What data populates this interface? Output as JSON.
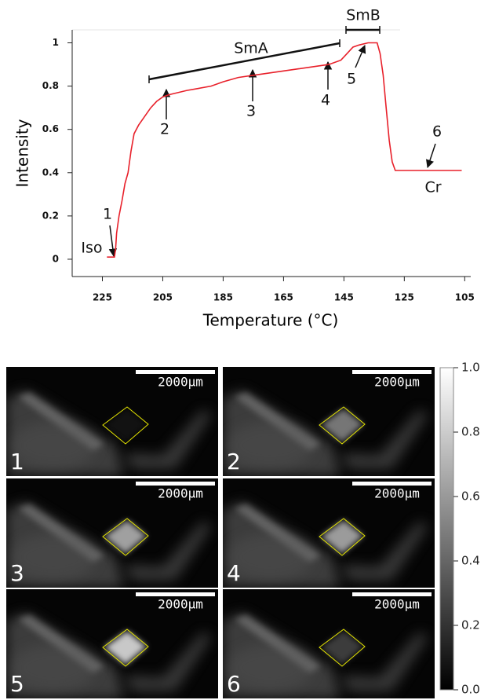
{
  "chart_data": {
    "type": "line",
    "xlabel": "Temperature (°C)",
    "ylabel": "Intensity",
    "color": "#e8202a",
    "x": [
      223.5,
      222,
      221,
      220.6,
      220.3,
      219.5,
      218.5,
      217.5,
      216.5,
      215.5,
      214.5,
      213,
      211,
      209,
      207,
      205,
      203,
      200,
      197,
      193,
      189,
      185,
      180,
      175,
      170,
      165,
      160,
      155,
      150,
      146,
      144,
      142,
      140,
      137,
      135,
      134,
      133,
      132,
      131,
      130,
      129,
      128,
      127,
      124,
      120,
      115,
      110,
      106
    ],
    "values": [
      0.01,
      0.01,
      0.01,
      0.05,
      0.12,
      0.2,
      0.27,
      0.35,
      0.4,
      0.5,
      0.58,
      0.62,
      0.66,
      0.7,
      0.73,
      0.75,
      0.76,
      0.77,
      0.78,
      0.79,
      0.8,
      0.82,
      0.84,
      0.85,
      0.86,
      0.87,
      0.88,
      0.89,
      0.9,
      0.92,
      0.95,
      0.98,
      0.99,
      1.0,
      1.0,
      1.0,
      0.95,
      0.85,
      0.7,
      0.55,
      0.45,
      0.41,
      0.41,
      0.41,
      0.41,
      0.41,
      0.41,
      0.41
    ],
    "xlim": [
      235,
      103
    ],
    "ylim": [
      -0.08,
      1.06
    ],
    "xticks": [
      225,
      205,
      185,
      165,
      145,
      125,
      105
    ],
    "yticks": [
      0,
      0.2,
      0.4,
      0.6,
      0.8,
      1
    ],
    "annotations": [
      "SmA",
      "SmB",
      "1",
      "2",
      "3",
      "4",
      "5",
      "6",
      "Iso",
      "Cr"
    ]
  },
  "image_grid": {
    "panels": [
      {
        "label": "1",
        "scale_bar": "2000μm"
      },
      {
        "label": "2",
        "scale_bar": "2000μm"
      },
      {
        "label": "3",
        "scale_bar": "2000μm"
      },
      {
        "label": "4",
        "scale_bar": "2000μm"
      },
      {
        "label": "5",
        "scale_bar": "2000μm"
      },
      {
        "label": "6",
        "scale_bar": "2000μm"
      }
    ],
    "colorbar": {
      "ylim": [
        0,
        1
      ],
      "yticks": [
        {
          "value": 0,
          "label": "0.0"
        },
        {
          "value": 0.2,
          "label": "0.2"
        },
        {
          "value": 0.4,
          "label": "0.4"
        },
        {
          "value": 0.6,
          "label": "0.6"
        },
        {
          "value": 0.8,
          "label": "0.8"
        },
        {
          "value": 1,
          "label": "1.0"
        }
      ]
    }
  }
}
